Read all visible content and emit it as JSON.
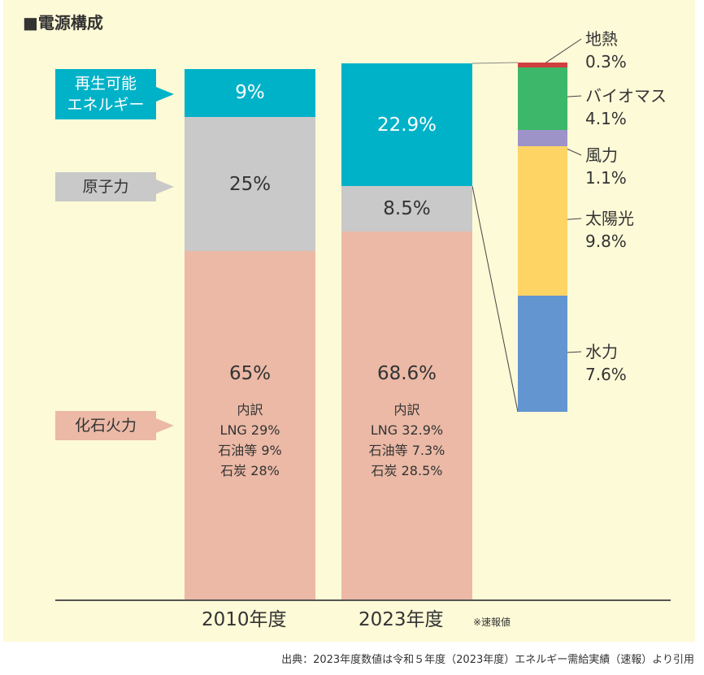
{
  "chart_data": {
    "type": "bar",
    "stacked": true,
    "title": "■電源構成",
    "categories": [
      "2010年度",
      "2023年度"
    ],
    "category_note": "※速報値",
    "series": [
      {
        "name": "化石火力",
        "color": "#ebb9a6",
        "values": [
          65,
          68.6
        ],
        "labels": [
          "65%",
          "68.6%"
        ]
      },
      {
        "name": "原子力",
        "color": "#c9c9c9",
        "values": [
          25,
          8.5
        ],
        "labels": [
          "25%",
          "8.5%"
        ]
      },
      {
        "name": "再生可能エネルギー",
        "color": "#00b2c8",
        "values": [
          9,
          22.9
        ],
        "labels": [
          "9%",
          "22.9%"
        ]
      }
    ],
    "fossil_breakdown": [
      {
        "lines": [
          "内訳",
          "LNG 29%",
          "石油等 9%",
          "石炭 28%"
        ]
      },
      {
        "lines": [
          "内訳",
          "LNG 32.9%",
          "石油等 7.3%",
          "石炭 28.5%"
        ]
      }
    ],
    "renewable_breakdown_2023": [
      {
        "name": "地熱",
        "value": 0.3,
        "label": "0.3%",
        "color": "#d0403f"
      },
      {
        "name": "バイオマス",
        "value": 4.1,
        "label": "4.1%",
        "color": "#3db769"
      },
      {
        "name": "風力",
        "value": 1.1,
        "label": "1.1%",
        "color": "#9d93c9"
      },
      {
        "name": "太陽光",
        "value": 9.8,
        "label": "9.8%",
        "color": "#fed465"
      },
      {
        "name": "水力",
        "value": 7.6,
        "label": "7.6%",
        "color": "#6395d0"
      }
    ],
    "legend_callouts": [
      {
        "lines": [
          "再生可能",
          "エネルギー"
        ],
        "color": "#00b2c8",
        "text_color": "#ffffff"
      },
      {
        "lines": [
          "原子力"
        ],
        "color": "#c9c9c9",
        "text_color": "#333333"
      },
      {
        "lines": [
          "化石火力"
        ],
        "color": "#ebb9a6",
        "text_color": "#333333"
      }
    ],
    "source": "出典：2023年度数値は令和５年度（2023年度）エネルギー需給実績（速報）より引用"
  }
}
